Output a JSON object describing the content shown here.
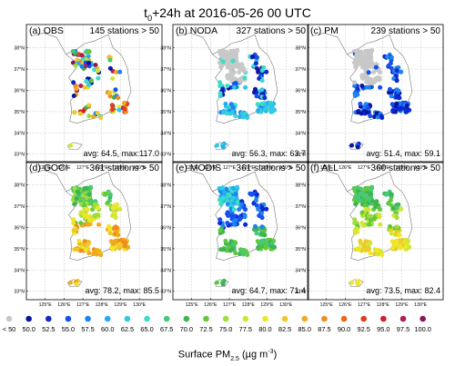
{
  "figure": {
    "title_prefix": "t",
    "title_sub": "0",
    "title_rest": "+24h at 2016-05-26 00 UTC",
    "colorbar_label_prefix": "Surface PM",
    "colorbar_label_sub": "2.5",
    "colorbar_label_unit_open": " (µg m",
    "colorbar_label_sup": "-3",
    "colorbar_label_close": ")"
  },
  "chart_data": {
    "type": "scatter",
    "x_ticks": [
      "125°E",
      "126°E",
      "127°E",
      "128°E",
      "129°E",
      "130°E"
    ],
    "y_ticks": [
      "38°N",
      "37°N",
      "36°N",
      "35°N",
      "34°N",
      "33°N"
    ],
    "colorbar": {
      "levels": [
        "< 50",
        "50.0",
        "52.5",
        "55.0",
        "57.5",
        "60.0",
        "62.5",
        "65.0",
        "67.5",
        "70.0",
        "72.5",
        "75.0",
        "77.5",
        "80.0",
        "82.5",
        "85.0",
        "87.5",
        "90.0",
        "92.5",
        "95.0",
        "97.5",
        "100.0"
      ],
      "colors": [
        "#c8c8c8",
        "#0a14a0",
        "#0a28d2",
        "#1450f0",
        "#1e82f0",
        "#28aaf0",
        "#32c8e6",
        "#3cdcc8",
        "#46c878",
        "#3cb450",
        "#64c83c",
        "#a0dc3c",
        "#d2e632",
        "#f0e628",
        "#f0c828",
        "#f0aa1e",
        "#f08c1e",
        "#f0641e",
        "#e63c1e",
        "#d21e28",
        "#b41e50",
        "#8c145a"
      ]
    },
    "panels": [
      {
        "label": "(a) OBS",
        "stations_text": "145 stations > 50",
        "stations": 145,
        "avg": 64.5,
        "max": 117.0,
        "avg_text": "avg: 64.5, max:117.0",
        "mode": "obs"
      },
      {
        "label": "(b) NODA",
        "stations_text": "327 stations > 50",
        "stations": 327,
        "avg": 56.3,
        "max": 63.7,
        "avg_text": "avg: 56.3, max: 63.7",
        "mode": "noda"
      },
      {
        "label": "(c) PM",
        "stations_text": "239 stations > 50",
        "stations": 239,
        "avg": 51.4,
        "max": 59.1,
        "avg_text": "avg: 51.4, max: 59.1",
        "mode": "pm"
      },
      {
        "label": "(d) GOCI",
        "stations_text": "361 stations > 50",
        "stations": 361,
        "avg": 78.2,
        "max": 85.5,
        "avg_text": "avg: 78.2, max: 85.5",
        "mode": "goci"
      },
      {
        "label": "(e) MODIS",
        "stations_text": "361 stations > 50",
        "stations": 361,
        "avg": 64.7,
        "max": 71.4,
        "avg_text": "avg: 64.7, max: 71.4",
        "mode": "modis"
      },
      {
        "label": "(f) ALL",
        "stations_text": "360 stations > 50",
        "stations": 360,
        "avg": 73.5,
        "max": 82.4,
        "avg_text": "avg: 73.5, max: 82.4",
        "mode": "all"
      }
    ]
  }
}
